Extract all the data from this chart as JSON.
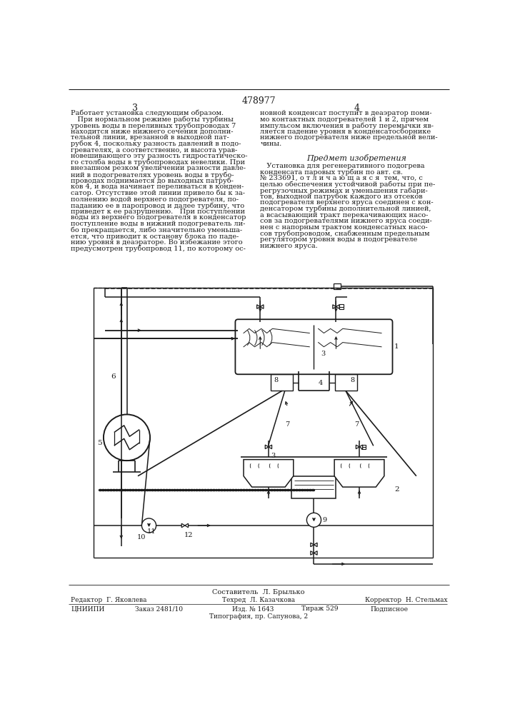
{
  "page_number_top": "478977",
  "col_left": "3",
  "col_right": "4",
  "text_left_col": [
    "Работает установка следующим образом.",
    "   При нормальном режиме работы турбины",
    "уровень воды в переливных трубопроводах 7",
    "находится ниже нижнего сечения дополни-",
    "тельной линии, врезанной в выходной пат-",
    "рубок 4, поскольку разность давлений в подо-",
    "гревателях, а соответственно, и высота урав-",
    "новешивающего эту разность гидростатическо-",
    "го столба воды в трубопроводах невелики. При",
    "внезапном резком увеличении разности давле-",
    "ний в подогревателях уровень воды в трубо-",
    "проводах поднимается до выходных патруб-",
    "ков 4, и вода начинает переливаться в конден-",
    "сатор. Отсутствие этой линии привело бы к за-",
    "полнению водой верхнего подогревателя, по-",
    "паданию ее в паропровод и далее турбину, что",
    "приведет к ее разрушению.   При поступлении",
    "воды из верхнего подогревателя в конденсатор",
    "поступление воды в нижний подогреватель ли-",
    "бо прекращается, либо значительно уменьша-",
    "ется, что приводит к останову блока по паде-",
    "нию уровня в деаэраторе. Во избежание этого",
    "предусмотрен трубопровод 11, по которому ос-"
  ],
  "right_col_lines": [
    "новной конденсат поступит в деаэратор поми-",
    "мо контактных подогревателей 1 и 2, причем",
    "импульсом включения в работу перемычки яв-",
    "ляется падение уровня в конденсатосборнике",
    "нижнего подогревателя ниже предельной вели-",
    "чины."
  ],
  "subject_title": "Предмет изобретения",
  "subject_lines": [
    "   Установка для регенеративного подогрева",
    "конденсата паровых турбин по авт. св.",
    "№ 233691, о т л и ч а ю щ а я с я  тем, что, с",
    "целью обеспечения устойчивой работы при пе-",
    "регрузочных режимах и уменьшения габари-",
    "тов, выходной патрубок каждого из отсеков",
    "подогревателя верхнего яруса соединен с кон-",
    "денсатором турбины дополнительной линией,",
    "а всасывающий тракт перекачивающих насо-",
    "сов за подогревателями нижнего яруса соеди-",
    "нен с напорным трактом конденсатных насо-",
    "сов трубопроводом, снабженным предельным",
    "регулятором уровня воды в подогревателе",
    "нижнего яруса."
  ],
  "footer_composer": "Составитель  Л. Брылько",
  "footer_editor": "Редактор  Г. Яковлева",
  "footer_tech": "Техред  Л. Казачкова",
  "footer_corrector": "Корректор  Н. Стельмах",
  "footer_cniip": "ЦНИИПИ",
  "footer_order": "Заказ 2481/10",
  "footer_edition": "Изд. № 1643",
  "footer_copies": "Тираж 529",
  "footer_subscription": "Подписное",
  "footer_typography": "Типография, пр. Сапунова, 2",
  "bg_color": "#ffffff",
  "line_color": "#1a1a1a",
  "text_color": "#1a1a1a"
}
